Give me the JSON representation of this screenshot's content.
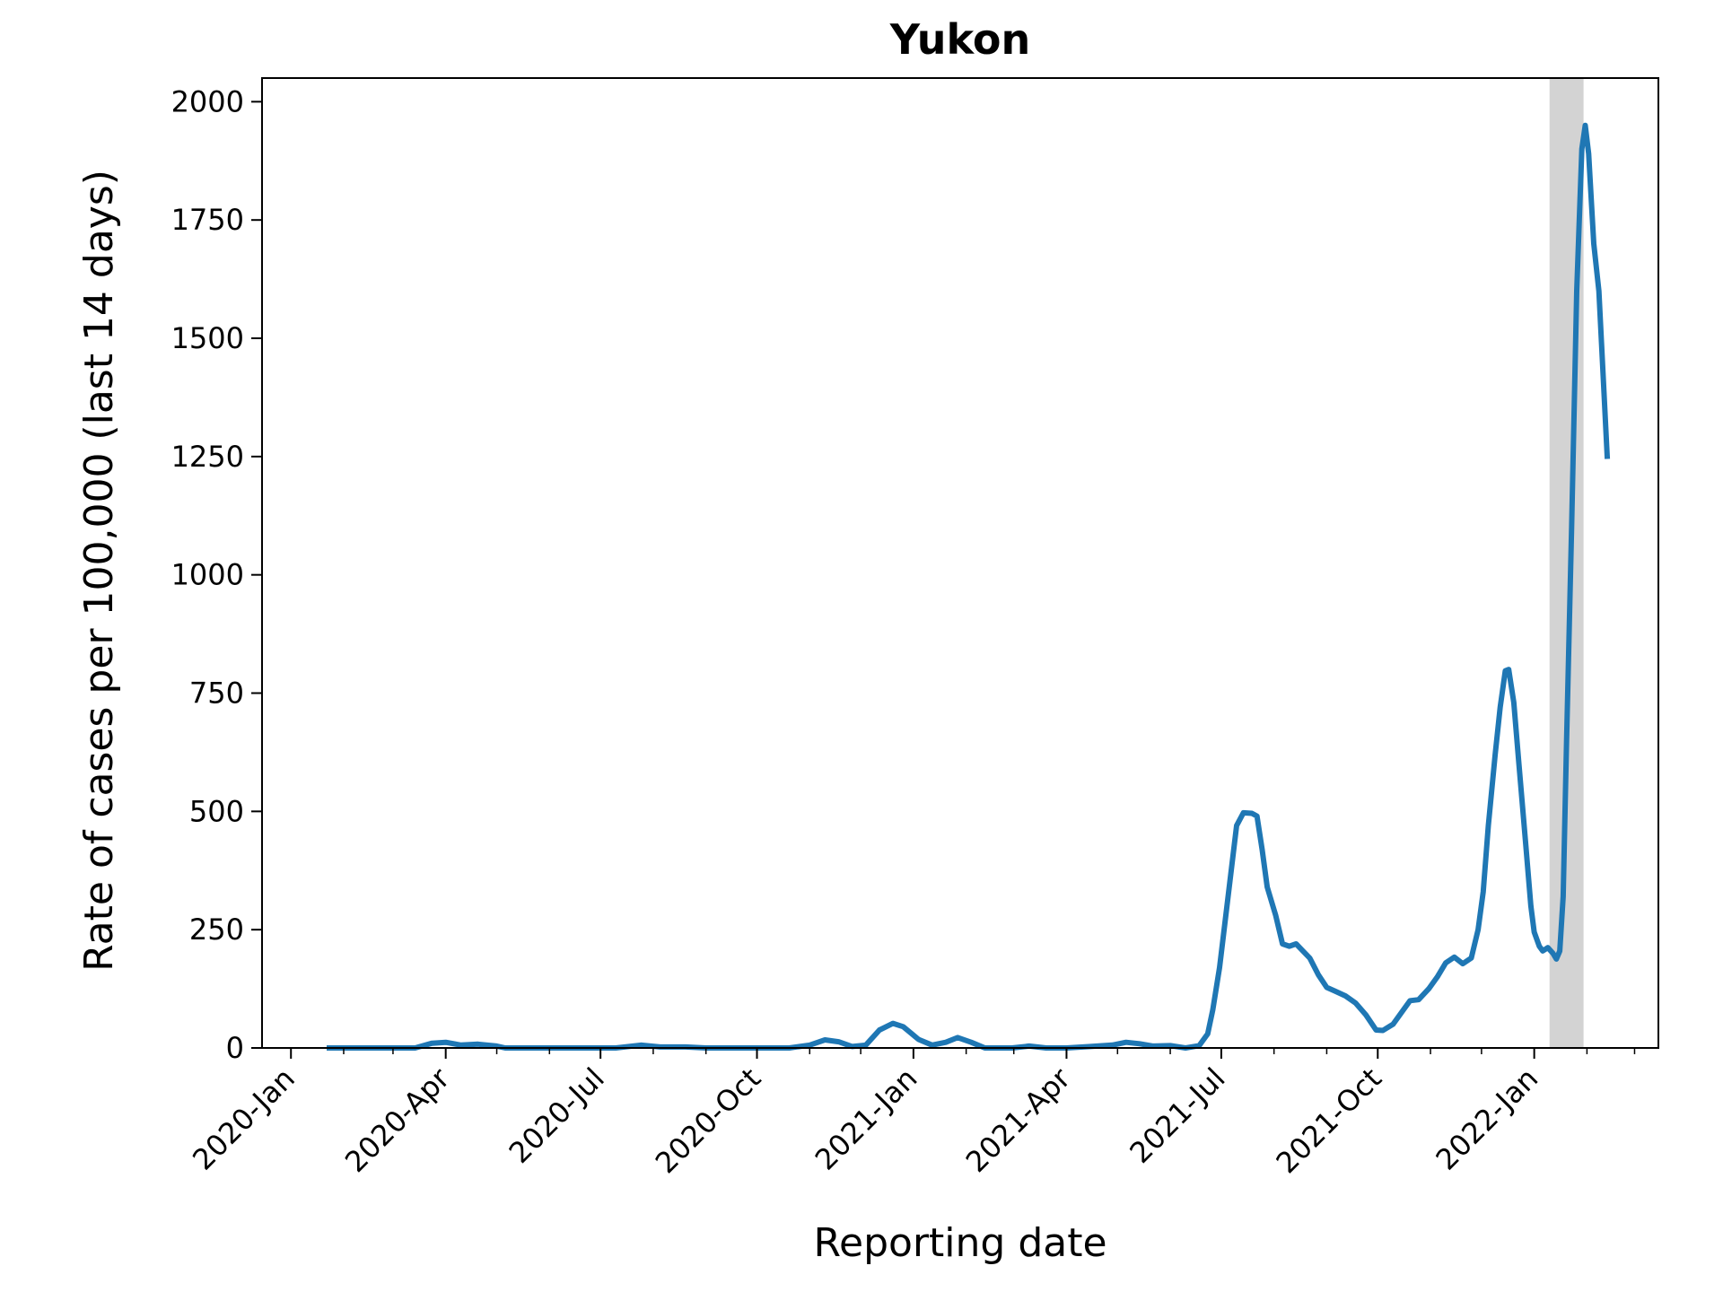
{
  "chart_data": {
    "type": "line",
    "title": "Yukon",
    "xlabel": "Reporting date",
    "ylabel": "Rate of cases per 100,000 (last 14 days)",
    "xlim": [
      "2019-12-15",
      "2022-03-15"
    ],
    "ylim": [
      0,
      2050
    ],
    "yticks": [
      0,
      250,
      500,
      750,
      1000,
      1250,
      1500,
      1750,
      2000
    ],
    "ytick_labels": [
      "0",
      "250",
      "500",
      "750",
      "1000",
      "1250",
      "1500",
      "1750",
      "2000"
    ],
    "xticks": [
      "2020-01-01",
      "2020-04-01",
      "2020-07-01",
      "2020-10-01",
      "2021-01-01",
      "2021-04-01",
      "2021-07-01",
      "2021-10-01",
      "2022-01-01"
    ],
    "xtick_labels": [
      "2020-Jan",
      "2020-Apr",
      "2020-Jul",
      "2020-Oct",
      "2021-Jan",
      "2021-Apr",
      "2021-Jul",
      "2021-Oct",
      "2022-Jan"
    ],
    "minor_xticks": [
      "2020-02-01",
      "2020-03-01",
      "2020-05-01",
      "2020-06-01",
      "2020-08-01",
      "2020-09-01",
      "2020-11-01",
      "2020-12-01",
      "2021-02-01",
      "2021-03-01",
      "2021-05-01",
      "2021-06-01",
      "2021-08-01",
      "2021-09-01",
      "2021-11-01",
      "2021-12-01",
      "2022-02-01",
      "2022-03-01"
    ],
    "grid": false,
    "shaded_region": {
      "start": "2022-01-10",
      "end": "2022-01-30",
      "color": "#d3d3d3"
    },
    "series": [
      {
        "color": "#1f77b4",
        "points": [
          [
            "2020-01-22",
            0
          ],
          [
            "2020-03-01",
            0
          ],
          [
            "2020-03-14",
            0
          ],
          [
            "2020-03-24",
            10
          ],
          [
            "2020-04-01",
            12
          ],
          [
            "2020-04-10",
            6
          ],
          [
            "2020-04-20",
            8
          ],
          [
            "2020-05-01",
            4
          ],
          [
            "2020-05-06",
            0
          ],
          [
            "2020-06-01",
            0
          ],
          [
            "2020-07-01",
            0
          ],
          [
            "2020-07-10",
            0
          ],
          [
            "2020-07-25",
            6
          ],
          [
            "2020-08-05",
            2
          ],
          [
            "2020-08-20",
            2
          ],
          [
            "2020-09-01",
            0
          ],
          [
            "2020-10-01",
            0
          ],
          [
            "2020-10-20",
            0
          ],
          [
            "2020-11-01",
            6
          ],
          [
            "2020-11-10",
            17
          ],
          [
            "2020-11-18",
            13
          ],
          [
            "2020-11-26",
            3
          ],
          [
            "2020-12-04",
            6
          ],
          [
            "2020-12-12",
            38
          ],
          [
            "2020-12-20",
            52
          ],
          [
            "2020-12-26",
            45
          ],
          [
            "2021-01-04",
            18
          ],
          [
            "2021-01-12",
            6
          ],
          [
            "2021-01-20",
            12
          ],
          [
            "2021-01-27",
            22
          ],
          [
            "2021-02-04",
            12
          ],
          [
            "2021-02-12",
            0
          ],
          [
            "2021-02-28",
            0
          ],
          [
            "2021-03-10",
            4
          ],
          [
            "2021-03-20",
            0
          ],
          [
            "2021-04-01",
            0
          ],
          [
            "2021-04-15",
            3
          ],
          [
            "2021-04-28",
            6
          ],
          [
            "2021-05-06",
            12
          ],
          [
            "2021-05-14",
            9
          ],
          [
            "2021-05-22",
            4
          ],
          [
            "2021-06-01",
            5
          ],
          [
            "2021-06-10",
            0
          ],
          [
            "2021-06-18",
            5
          ],
          [
            "2021-06-23",
            30
          ],
          [
            "2021-06-26",
            80
          ],
          [
            "2021-06-30",
            170
          ],
          [
            "2021-07-04",
            290
          ],
          [
            "2021-07-07",
            380
          ],
          [
            "2021-07-10",
            470
          ],
          [
            "2021-07-14",
            497
          ],
          [
            "2021-07-19",
            496
          ],
          [
            "2021-07-22",
            490
          ],
          [
            "2021-07-25",
            420
          ],
          [
            "2021-07-28",
            340
          ],
          [
            "2021-08-02",
            280
          ],
          [
            "2021-08-06",
            220
          ],
          [
            "2021-08-10",
            215
          ],
          [
            "2021-08-14",
            220
          ],
          [
            "2021-08-18",
            205
          ],
          [
            "2021-08-22",
            190
          ],
          [
            "2021-08-27",
            155
          ],
          [
            "2021-09-01",
            128
          ],
          [
            "2021-09-06",
            120
          ],
          [
            "2021-09-12",
            110
          ],
          [
            "2021-09-18",
            95
          ],
          [
            "2021-09-24",
            70
          ],
          [
            "2021-09-30",
            38
          ],
          [
            "2021-10-04",
            37
          ],
          [
            "2021-10-10",
            50
          ],
          [
            "2021-10-16",
            80
          ],
          [
            "2021-10-20",
            100
          ],
          [
            "2021-10-25",
            102
          ],
          [
            "2021-10-31",
            125
          ],
          [
            "2021-11-05",
            150
          ],
          [
            "2021-11-10",
            180
          ],
          [
            "2021-11-15",
            192
          ],
          [
            "2021-11-20",
            178
          ],
          [
            "2021-11-25",
            190
          ],
          [
            "2021-11-29",
            250
          ],
          [
            "2021-12-02",
            330
          ],
          [
            "2021-12-05",
            470
          ],
          [
            "2021-12-09",
            620
          ],
          [
            "2021-12-12",
            720
          ],
          [
            "2021-12-15",
            797
          ],
          [
            "2021-12-17",
            800
          ],
          [
            "2021-12-20",
            730
          ],
          [
            "2021-12-23",
            600
          ],
          [
            "2021-12-27",
            430
          ],
          [
            "2021-12-30",
            300
          ],
          [
            "2022-01-01",
            245
          ],
          [
            "2022-01-04",
            215
          ],
          [
            "2022-01-06",
            205
          ],
          [
            "2022-01-09",
            212
          ],
          [
            "2022-01-12",
            200
          ],
          [
            "2022-01-14",
            188
          ],
          [
            "2022-01-16",
            205
          ],
          [
            "2022-01-18",
            320
          ],
          [
            "2022-01-20",
            650
          ],
          [
            "2022-01-23",
            1100
          ],
          [
            "2022-01-26",
            1600
          ],
          [
            "2022-01-29",
            1900
          ],
          [
            "2022-01-31",
            1950
          ],
          [
            "2022-02-02",
            1890
          ],
          [
            "2022-02-05",
            1700
          ],
          [
            "2022-02-08",
            1600
          ],
          [
            "2022-02-13",
            1245
          ]
        ]
      }
    ]
  }
}
